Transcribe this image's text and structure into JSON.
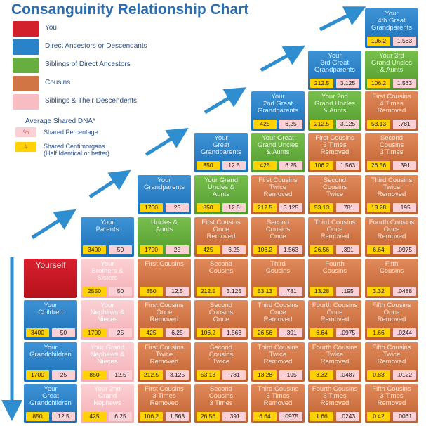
{
  "title": "Consanguinity Relationship Chart",
  "legend": [
    {
      "label": "You",
      "color": "#d3202d"
    },
    {
      "label": "Direct Ancestors or Descendants",
      "color": "#2a82c8"
    },
    {
      "label": "Siblings of Direct Ancestors",
      "color": "#67ad3f"
    },
    {
      "label": "Cousins",
      "color": "#d27545"
    },
    {
      "label": "Siblings & Their Descendents",
      "color": "#f7bdc3"
    }
  ],
  "dna": {
    "title": "Average Shared DNA*",
    "pct_symbol": "%",
    "pct_label": "Shared Percentage",
    "cm_symbol": "#",
    "cm_label": "Shared Centimorgans\n(Half Identical or better)"
  },
  "cells": [
    {
      "label": "Your\n4th Great\nGrandparents",
      "type": "anc",
      "cm": "106.2",
      "pct": "1.563"
    },
    {
      "label": "Your\n3rd Great\nGrandparents",
      "type": "anc",
      "cm": "212.5",
      "pct": "3.125"
    },
    {
      "label": "Your 3rd\nGrand Uncles\n& Aunts",
      "type": "sib",
      "cm": "106.2",
      "pct": "1.563"
    },
    {
      "label": "Your\n2nd Great\nGrandparents",
      "type": "anc",
      "cm": "425",
      "pct": "6.25"
    },
    {
      "label": "Your 2nd\nGrand Uncles\n& Aunts",
      "type": "sib",
      "cm": "212.5",
      "pct": "3.125"
    },
    {
      "label": "First Cousins\n4 Times\nRemoved",
      "type": "cous",
      "cm": "53.13",
      "pct": ".781"
    },
    {
      "label": "Your\nGreat\nGrandparents",
      "type": "anc",
      "cm": "850",
      "pct": "12.5"
    },
    {
      "label": "Your Great\nGrand Uncles\n& Aunts",
      "type": "sib",
      "cm": "425",
      "pct": "6.25"
    },
    {
      "label": "First Cousins\n3 Times\nRemoved",
      "type": "cous",
      "cm": "106.2",
      "pct": "1.563"
    },
    {
      "label": "Second\nCousins\n3 Times",
      "type": "cous",
      "cm": "26.56",
      "pct": ".391"
    },
    {
      "label": "Your\nGrandparents",
      "type": "anc",
      "cm": "1700",
      "pct": "25"
    },
    {
      "label": "Your Grand\nUncles &\nAunts",
      "type": "sib",
      "cm": "850",
      "pct": "12.5"
    },
    {
      "label": "First Cousins\nTwice\nRemoved",
      "type": "cous",
      "cm": "212.5",
      "pct": "3.125"
    },
    {
      "label": "Second\nCousins\nTwice",
      "type": "cous",
      "cm": "53.13",
      "pct": ".781"
    },
    {
      "label": "Third Cousins\nTwice\nRemoved",
      "type": "cous",
      "cm": "13.28",
      "pct": ".195"
    },
    {
      "label": "Your\nParents",
      "type": "anc",
      "cm": "3400",
      "pct": "50"
    },
    {
      "label": "Uncles &\nAunts",
      "type": "sib",
      "cm": "1700",
      "pct": "25"
    },
    {
      "label": "First Cousins\nOnce\nRemoved",
      "type": "cous",
      "cm": "425",
      "pct": "6.25"
    },
    {
      "label": "Second\nCousins\nOnce",
      "type": "cous",
      "cm": "106.2",
      "pct": "1.563"
    },
    {
      "label": "Third Cousins\nOnce\nRemoved",
      "type": "cous",
      "cm": "26.56",
      "pct": ".391"
    },
    {
      "label": "Fourth Cousins\nOnce\nRemoved",
      "type": "cous",
      "cm": "6.64",
      "pct": ".0975"
    },
    {
      "label": "Yourself",
      "type": "you",
      "cm": "",
      "pct": ""
    },
    {
      "label": "Your\nBrothers &\nSisters",
      "type": "desc",
      "cm": "2550",
      "pct": "50"
    },
    {
      "label": "First Cousins",
      "type": "cous",
      "cm": "850",
      "pct": "12.5"
    },
    {
      "label": "Second\nCousins",
      "type": "cous",
      "cm": "212.5",
      "pct": "3.125"
    },
    {
      "label": "Third\nCousins",
      "type": "cous",
      "cm": "53.13",
      "pct": ".781"
    },
    {
      "label": "Fourth\nCousins",
      "type": "cous",
      "cm": "13.28",
      "pct": ".195"
    },
    {
      "label": "Fifth\nCousins",
      "type": "cous",
      "cm": "3.32",
      "pct": ".0488"
    },
    {
      "label": "Your\nChildren",
      "type": "anc",
      "cm": "3400",
      "pct": "50"
    },
    {
      "label": "Your\nNephews &\nNieces",
      "type": "desc",
      "cm": "1700",
      "pct": "25"
    },
    {
      "label": "First Cousins\nOnce\nRemoved",
      "type": "cous",
      "cm": "425",
      "pct": "6.25"
    },
    {
      "label": "Second\nCousins\nOnce",
      "type": "cous",
      "cm": "106.2",
      "pct": "1.563"
    },
    {
      "label": "Third Cousins\nOnce\nRemoved",
      "type": "cous",
      "cm": "26.56",
      "pct": ".391"
    },
    {
      "label": "Fourth Cousins\nOnce\nRemoved",
      "type": "cous",
      "cm": "6.64",
      "pct": ".0975"
    },
    {
      "label": "Fifth Cousins\nOnce\nRemoved",
      "type": "cous",
      "cm": "1.66",
      "pct": ".0244"
    },
    {
      "label": "Your\nGrandchildren",
      "type": "anc",
      "cm": "1700",
      "pct": "25"
    },
    {
      "label": "Your Grand\nNephews &\nNieces",
      "type": "desc",
      "cm": "850",
      "pct": "12.5"
    },
    {
      "label": "First Cousins\nTwice\nRemoved",
      "type": "cous",
      "cm": "212.5",
      "pct": "3.125"
    },
    {
      "label": "Second\nCousins\nTwice",
      "type": "cous",
      "cm": "53.13",
      "pct": ".781"
    },
    {
      "label": "Third Cousins\nTwice\nRemoved",
      "type": "cous",
      "cm": "13.28",
      "pct": ".195"
    },
    {
      "label": "Fourth Cousins\nTwice\nRemoved",
      "type": "cous",
      "cm": "3.32",
      "pct": ".0487"
    },
    {
      "label": "Fifth Cousins\nTwice\nRemoved",
      "type": "cous",
      "cm": "0.83",
      "pct": ".0122"
    },
    {
      "label": "Your\nGreat\nGrandchildren",
      "type": "anc",
      "cm": "850",
      "pct": "12.5"
    },
    {
      "label": "Your 2nd\nGrand\nNephews",
      "type": "desc",
      "cm": "425",
      "pct": "6.25"
    },
    {
      "label": "First Cousins\n3 Times\nRemoved",
      "type": "cous",
      "cm": "106.2",
      "pct": "1.563"
    },
    {
      "label": "Second\nCousins\n3 Times",
      "type": "cous",
      "cm": "26.56",
      "pct": ".391"
    },
    {
      "label": "Third Cousins\n3 Times\nRemoved",
      "type": "cous",
      "cm": "6.64",
      "pct": ".0975"
    },
    {
      "label": "Fourth Cousins\n3 Times\nRemoved",
      "type": "cous",
      "cm": "1.66",
      "pct": ".0243"
    },
    {
      "label": "Fifth Cousins\n3 Times\nRemoved",
      "type": "cous",
      "cm": "0.42",
      "pct": ".0061"
    }
  ]
}
